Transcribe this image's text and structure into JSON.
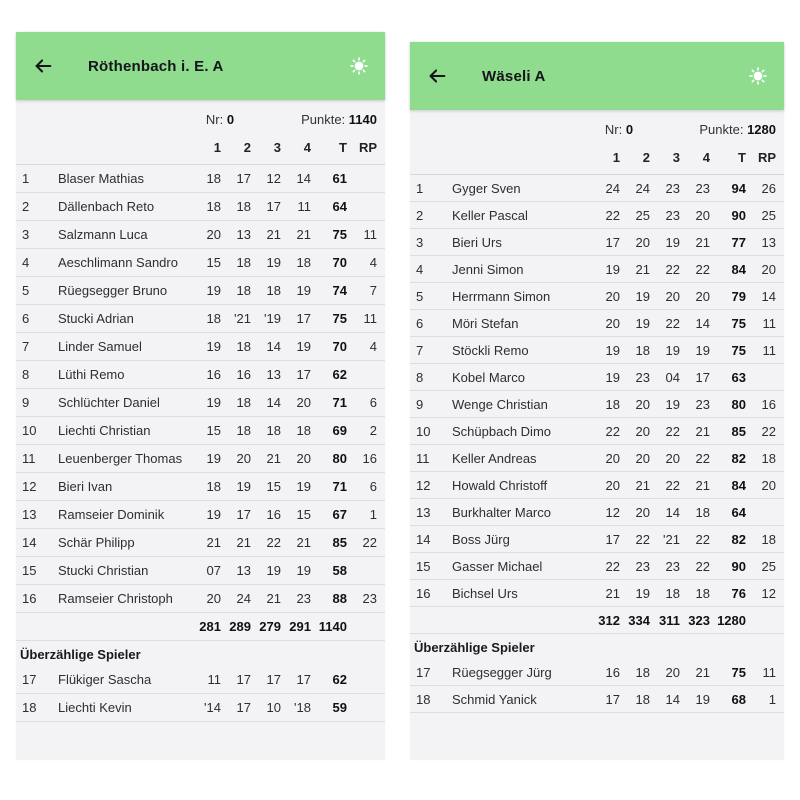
{
  "colors": {
    "header_green": "#8fdc8f",
    "panel_bg": "#f3f3f5",
    "divider": "#dddde0"
  },
  "left": {
    "title": "Röthenbach i. E. A",
    "nr_label": "Nr:",
    "nr_value": "0",
    "punkte_label": "Punkte:",
    "punkte_value": "1140",
    "columns": [
      "1",
      "2",
      "3",
      "4",
      "T",
      "RP"
    ],
    "players": [
      {
        "rank": "1",
        "name": "Blaser Mathias",
        "s1": "18",
        "s2": "17",
        "s3": "12",
        "s4": "14",
        "t": "61",
        "rp": ""
      },
      {
        "rank": "2",
        "name": "Dällenbach Reto",
        "s1": "18",
        "s2": "18",
        "s3": "17",
        "s4": "11",
        "t": "64",
        "rp": ""
      },
      {
        "rank": "3",
        "name": "Salzmann Luca",
        "s1": "20",
        "s2": "13",
        "s3": "21",
        "s4": "21",
        "t": "75",
        "rp": "11"
      },
      {
        "rank": "4",
        "name": "Aeschlimann Sandro",
        "s1": "15",
        "s2": "18",
        "s3": "19",
        "s4": "18",
        "t": "70",
        "rp": "4"
      },
      {
        "rank": "5",
        "name": "Rüegsegger Bruno",
        "s1": "19",
        "s2": "18",
        "s3": "18",
        "s4": "19",
        "t": "74",
        "rp": "7"
      },
      {
        "rank": "6",
        "name": "Stucki Adrian",
        "s1": "18",
        "s2": "'21",
        "s3": "'19",
        "s4": "17",
        "t": "75",
        "rp": "11"
      },
      {
        "rank": "7",
        "name": "Linder Samuel",
        "s1": "19",
        "s2": "18",
        "s3": "14",
        "s4": "19",
        "t": "70",
        "rp": "4"
      },
      {
        "rank": "8",
        "name": "Lüthi Remo",
        "s1": "16",
        "s2": "16",
        "s3": "13",
        "s4": "17",
        "t": "62",
        "rp": ""
      },
      {
        "rank": "9",
        "name": "Schlüchter Daniel",
        "s1": "19",
        "s2": "18",
        "s3": "14",
        "s4": "20",
        "t": "71",
        "rp": "6"
      },
      {
        "rank": "10",
        "name": "Liechti Christian",
        "s1": "15",
        "s2": "18",
        "s3": "18",
        "s4": "18",
        "t": "69",
        "rp": "2"
      },
      {
        "rank": "11",
        "name": "Leuenberger Thomas",
        "s1": "19",
        "s2": "20",
        "s3": "21",
        "s4": "20",
        "t": "80",
        "rp": "16"
      },
      {
        "rank": "12",
        "name": "Bieri Ivan",
        "s1": "18",
        "s2": "19",
        "s3": "15",
        "s4": "19",
        "t": "71",
        "rp": "6"
      },
      {
        "rank": "13",
        "name": "Ramseier Dominik",
        "s1": "19",
        "s2": "17",
        "s3": "16",
        "s4": "15",
        "t": "67",
        "rp": "1"
      },
      {
        "rank": "14",
        "name": "Schär Philipp",
        "s1": "21",
        "s2": "21",
        "s3": "22",
        "s4": "21",
        "t": "85",
        "rp": "22"
      },
      {
        "rank": "15",
        "name": "Stucki Christian",
        "s1": "07",
        "s2": "13",
        "s3": "19",
        "s4": "19",
        "t": "58",
        "rp": ""
      },
      {
        "rank": "16",
        "name": "Ramseier Christoph",
        "s1": "20",
        "s2": "24",
        "s3": "21",
        "s4": "23",
        "t": "88",
        "rp": "23"
      }
    ],
    "totals": [
      "281",
      "289",
      "279",
      "291",
      "1140"
    ],
    "extra_label": "Überzählige Spieler",
    "extra_players": [
      {
        "rank": "17",
        "name": "Flükiger Sascha",
        "s1": "11",
        "s2": "17",
        "s3": "17",
        "s4": "17",
        "t": "62",
        "rp": ""
      },
      {
        "rank": "18",
        "name": "Liechti Kevin",
        "s1": "'14",
        "s2": "17",
        "s3": "10",
        "s4": "'18",
        "t": "59",
        "rp": ""
      }
    ]
  },
  "right": {
    "title": "Wäseli A",
    "nr_label": "Nr:",
    "nr_value": "0",
    "punkte_label": "Punkte:",
    "punkte_value": "1280",
    "columns": [
      "1",
      "2",
      "3",
      "4",
      "T",
      "RP"
    ],
    "players": [
      {
        "rank": "1",
        "name": "Gyger Sven",
        "s1": "24",
        "s2": "24",
        "s3": "23",
        "s4": "23",
        "t": "94",
        "rp": "26"
      },
      {
        "rank": "2",
        "name": "Keller Pascal",
        "s1": "22",
        "s2": "25",
        "s3": "23",
        "s4": "20",
        "t": "90",
        "rp": "25"
      },
      {
        "rank": "3",
        "name": "Bieri Urs",
        "s1": "17",
        "s2": "20",
        "s3": "19",
        "s4": "21",
        "t": "77",
        "rp": "13"
      },
      {
        "rank": "4",
        "name": "Jenni Simon",
        "s1": "19",
        "s2": "21",
        "s3": "22",
        "s4": "22",
        "t": "84",
        "rp": "20"
      },
      {
        "rank": "5",
        "name": "Herrmann Simon",
        "s1": "20",
        "s2": "19",
        "s3": "20",
        "s4": "20",
        "t": "79",
        "rp": "14"
      },
      {
        "rank": "6",
        "name": "Möri Stefan",
        "s1": "20",
        "s2": "19",
        "s3": "22",
        "s4": "14",
        "t": "75",
        "rp": "11"
      },
      {
        "rank": "7",
        "name": "Stöckli Remo",
        "s1": "19",
        "s2": "18",
        "s3": "19",
        "s4": "19",
        "t": "75",
        "rp": "11"
      },
      {
        "rank": "8",
        "name": "Kobel Marco",
        "s1": "19",
        "s2": "23",
        "s3": "04",
        "s4": "17",
        "t": "63",
        "rp": ""
      },
      {
        "rank": "9",
        "name": "Wenge Christian",
        "s1": "18",
        "s2": "20",
        "s3": "19",
        "s4": "23",
        "t": "80",
        "rp": "16"
      },
      {
        "rank": "10",
        "name": "Schüpbach Dimo",
        "s1": "22",
        "s2": "20",
        "s3": "22",
        "s4": "21",
        "t": "85",
        "rp": "22"
      },
      {
        "rank": "11",
        "name": "Keller Andreas",
        "s1": "20",
        "s2": "20",
        "s3": "20",
        "s4": "22",
        "t": "82",
        "rp": "18"
      },
      {
        "rank": "12",
        "name": "Howald Christoff",
        "s1": "20",
        "s2": "21",
        "s3": "22",
        "s4": "21",
        "t": "84",
        "rp": "20"
      },
      {
        "rank": "13",
        "name": "Burkhalter Marco",
        "s1": "12",
        "s2": "20",
        "s3": "14",
        "s4": "18",
        "t": "64",
        "rp": ""
      },
      {
        "rank": "14",
        "name": "Boss Jürg",
        "s1": "17",
        "s2": "22",
        "s3": "'21",
        "s4": "22",
        "t": "82",
        "rp": "18"
      },
      {
        "rank": "15",
        "name": "Gasser Michael",
        "s1": "22",
        "s2": "23",
        "s3": "23",
        "s4": "22",
        "t": "90",
        "rp": "25"
      },
      {
        "rank": "16",
        "name": "Bichsel Urs",
        "s1": "21",
        "s2": "19",
        "s3": "18",
        "s4": "18",
        "t": "76",
        "rp": "12"
      }
    ],
    "totals": [
      "312",
      "334",
      "311",
      "323",
      "1280"
    ],
    "extra_label": "Überzählige Spieler",
    "extra_players": [
      {
        "rank": "17",
        "name": "Rüegsegger Jürg",
        "s1": "16",
        "s2": "18",
        "s3": "20",
        "s4": "21",
        "t": "75",
        "rp": "11"
      },
      {
        "rank": "18",
        "name": "Schmid Yanick",
        "s1": "17",
        "s2": "18",
        "s3": "14",
        "s4": "19",
        "t": "68",
        "rp": "1"
      }
    ]
  }
}
